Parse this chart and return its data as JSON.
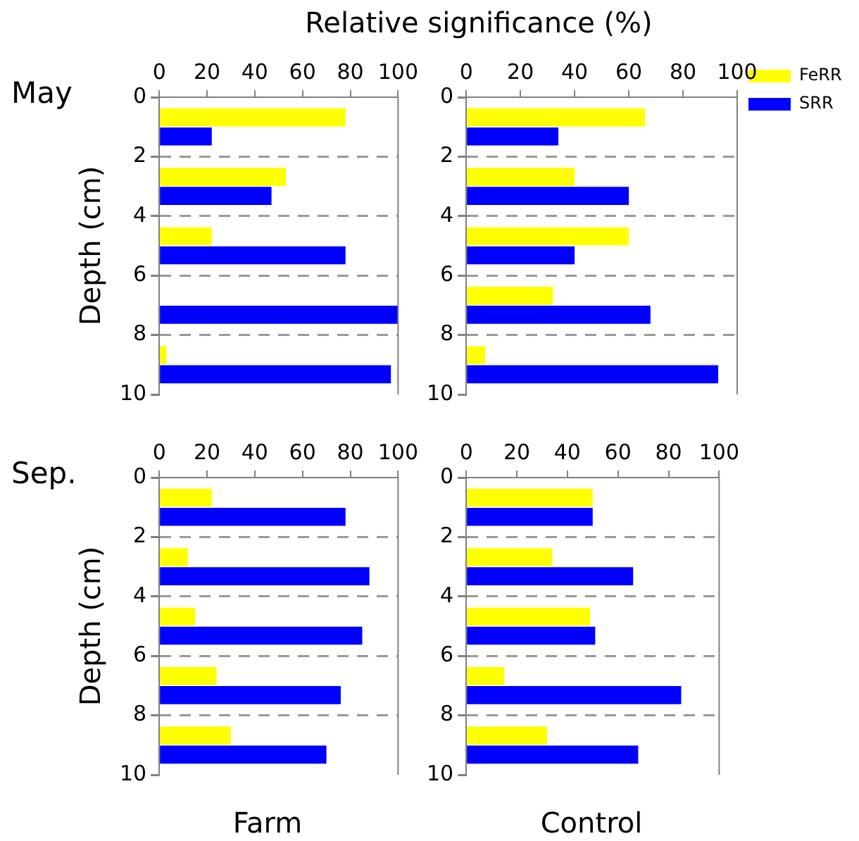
{
  "chart_data": [
    {
      "type": "bar",
      "orientation": "horizontal",
      "title": "May",
      "xlabel": "Relative significance (%)",
      "ylabel": "Depth (cm)",
      "x": [
        1,
        3,
        5,
        7,
        9
      ],
      "series": [
        {
          "color": "#ffff00",
          "values": [
            78,
            53,
            22,
            0,
            3
          ]
        },
        {
          "color": "#0000ff",
          "values": [
            22,
            47,
            78,
            100,
            97
          ]
        }
      ],
      "xlim": [
        0,
        100
      ],
      "xticks": [
        0,
        20,
        40,
        60,
        80,
        100
      ],
      "ylim": [
        10,
        0
      ],
      "yticks": [
        0,
        2,
        4,
        6,
        8,
        10
      ],
      "grid": "y"
    },
    {
      "type": "bar",
      "orientation": "horizontal",
      "x": [
        1,
        3,
        5,
        7,
        9
      ],
      "series": [
        {
          "name": "FeRR",
          "color": "#ffff00",
          "values": [
            66,
            40,
            60,
            32,
            7
          ]
        },
        {
          "name": "SRR",
          "color": "#0000ff",
          "values": [
            34,
            60,
            40,
            68,
            93
          ]
        }
      ],
      "xlim": [
        0,
        100
      ],
      "xticks": [
        0,
        20,
        40,
        60,
        80,
        100
      ],
      "ylim": [
        10,
        0
      ],
      "yticks": [
        0,
        2,
        4,
        6,
        8,
        10
      ],
      "grid": "y",
      "legend": "right"
    },
    {
      "type": "bar",
      "orientation": "horizontal",
      "title": "Sep.",
      "ylabel": "Depth (cm)",
      "annotations": [
        "Farm"
      ],
      "x": [
        1,
        3,
        5,
        7,
        9
      ],
      "series": [
        {
          "color": "#ffff00",
          "values": [
            22,
            12,
            15,
            24,
            30
          ]
        },
        {
          "color": "#0000ff",
          "values": [
            78,
            88,
            85,
            76,
            70
          ]
        }
      ],
      "xlim": [
        0,
        100
      ],
      "xticks": [
        0,
        20,
        40,
        60,
        80,
        100
      ],
      "ylim": [
        10,
        0
      ],
      "yticks": [
        0,
        2,
        4,
        6,
        8,
        10
      ],
      "grid": "y"
    },
    {
      "type": "bar",
      "orientation": "horizontal",
      "annotations": [
        "Control"
      ],
      "x": [
        1,
        3,
        5,
        7,
        9
      ],
      "series": [
        {
          "color": "#ffff00",
          "values": [
            50,
            34,
            49,
            15,
            32
          ]
        },
        {
          "color": "#0000ff",
          "values": [
            50,
            66,
            51,
            85,
            68
          ]
        }
      ],
      "xlim": [
        0,
        100
      ],
      "xticks": [
        0,
        20,
        40,
        60,
        80,
        100
      ],
      "ylim": [
        10,
        0
      ],
      "yticks": [
        0,
        2,
        4,
        6,
        8,
        10
      ],
      "grid": "y"
    }
  ]
}
